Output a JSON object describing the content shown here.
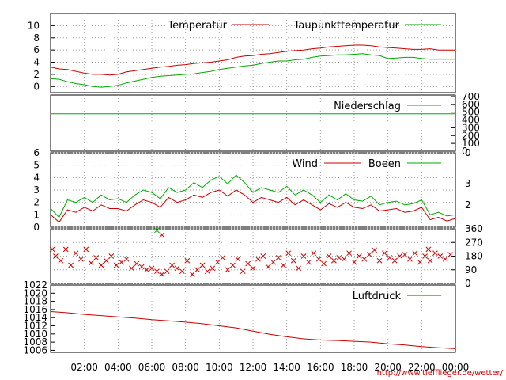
{
  "credit": "http://www.tiefflieger.de/wetter/",
  "colors": {
    "red": "#cc0000",
    "green": "#00aa00",
    "grid": "#a0a0a0"
  },
  "x_ticks": [
    "02:00",
    "04:00",
    "06:00",
    "08:00",
    "10:00",
    "12:00",
    "14:00",
    "16:00",
    "18:00",
    "20:00",
    "22:00",
    "00:00"
  ],
  "chart_data": [
    {
      "type": "line",
      "name": "temperature-panel",
      "x_unit": "hours",
      "xlim": [
        0,
        24
      ],
      "ylim": [
        -1,
        12
      ],
      "y_ticks": [
        0,
        2,
        4,
        6,
        8,
        10
      ],
      "series": [
        {
          "name": "Temperatur",
          "color": "#cc0000",
          "x": [
            0,
            0.5,
            1,
            1.5,
            2,
            2.5,
            3,
            3.5,
            4,
            4.5,
            5,
            5.5,
            6,
            6.5,
            7,
            7.5,
            8,
            8.5,
            9,
            9.5,
            10,
            10.5,
            11,
            11.5,
            12,
            12.5,
            13,
            13.5,
            14,
            14.5,
            15,
            15.5,
            16,
            16.5,
            17,
            17.5,
            18,
            18.5,
            19,
            19.5,
            20,
            20.5,
            21,
            21.5,
            22,
            22.5,
            23,
            23.5,
            24
          ],
          "values": [
            3.2,
            2.9,
            2.8,
            2.5,
            2.2,
            2.0,
            2.0,
            1.9,
            2.0,
            2.4,
            2.6,
            2.8,
            3.0,
            3.2,
            3.3,
            3.5,
            3.6,
            3.8,
            3.9,
            4.0,
            4.2,
            4.4,
            4.8,
            5.0,
            5.1,
            5.3,
            5.4,
            5.6,
            5.8,
            5.9,
            6.0,
            6.2,
            6.3,
            6.5,
            6.6,
            6.7,
            6.8,
            6.8,
            6.7,
            6.5,
            6.4,
            6.3,
            6.2,
            6.1,
            6.1,
            6.2,
            6.0,
            6.0,
            6.0
          ]
        },
        {
          "name": "Taupunkttemperatur",
          "color": "#00aa00",
          "x": [
            0,
            0.5,
            1,
            1.5,
            2,
            2.5,
            3,
            3.5,
            4,
            4.5,
            5,
            5.5,
            6,
            6.5,
            7,
            7.5,
            8,
            8.5,
            9,
            9.5,
            10,
            10.5,
            11,
            11.5,
            12,
            12.5,
            13,
            13.5,
            14,
            14.5,
            15,
            15.5,
            16,
            16.5,
            17,
            17.5,
            18,
            18.5,
            19,
            19.5,
            20,
            20.5,
            21,
            21.5,
            22,
            22.5,
            23,
            23.5,
            24
          ],
          "values": [
            1.3,
            1.2,
            0.8,
            0.5,
            0.3,
            0.0,
            -0.1,
            0.0,
            0.2,
            0.6,
            0.9,
            1.2,
            1.5,
            1.7,
            1.8,
            1.9,
            2.0,
            2.1,
            2.3,
            2.5,
            2.8,
            3.0,
            3.2,
            3.4,
            3.5,
            3.8,
            4.0,
            4.2,
            4.2,
            4.4,
            4.5,
            4.8,
            5.0,
            5.1,
            5.2,
            5.2,
            5.3,
            5.4,
            5.2,
            5.1,
            4.6,
            4.7,
            4.8,
            4.8,
            4.6,
            4.5,
            4.5,
            4.5,
            4.5
          ]
        }
      ]
    },
    {
      "type": "line",
      "name": "precipitation-panel",
      "xlim": [
        0,
        24
      ],
      "ylim": [
        0,
        720
      ],
      "y_ticks": [
        0,
        100,
        200,
        300,
        400,
        500,
        600,
        700
      ],
      "series": [
        {
          "name": "Niederschlag",
          "color": "#00aa00",
          "x": [
            0,
            24
          ],
          "values": [
            480,
            480
          ]
        }
      ]
    },
    {
      "type": "line",
      "name": "wind-panel",
      "xlim": [
        0,
        24
      ],
      "ylim": [
        0,
        6
      ],
      "y_ticks": [
        0,
        1,
        2,
        3,
        4,
        5,
        6
      ],
      "right_ticks": [
        "3",
        "2"
      ],
      "series": [
        {
          "name": "Wind",
          "color": "#cc0000",
          "x": [
            0,
            0.5,
            1,
            1.5,
            2,
            2.5,
            3,
            3.5,
            4,
            4.5,
            5,
            5.5,
            6,
            6.5,
            7,
            7.5,
            8,
            8.5,
            9,
            9.5,
            10,
            10.5,
            11,
            11.5,
            12,
            12.5,
            13,
            13.5,
            14,
            14.5,
            15,
            15.5,
            16,
            16.5,
            17,
            17.5,
            18,
            18.5,
            19,
            19.5,
            20,
            20.5,
            21,
            21.5,
            22,
            22.5,
            23,
            23.5,
            24
          ],
          "values": [
            1.0,
            0.4,
            1.4,
            1.2,
            1.6,
            1.3,
            1.8,
            1.5,
            1.5,
            1.3,
            1.8,
            2.2,
            2.0,
            1.6,
            2.4,
            2.0,
            2.2,
            2.6,
            2.4,
            2.8,
            3.0,
            2.5,
            3.0,
            2.6,
            2.0,
            2.4,
            2.2,
            2.0,
            2.4,
            1.8,
            2.2,
            1.8,
            1.4,
            1.9,
            1.6,
            2.0,
            1.6,
            1.5,
            1.8,
            1.3,
            1.4,
            1.5,
            1.2,
            1.3,
            1.6,
            0.6,
            0.8,
            0.5,
            0.7
          ]
        },
        {
          "name": "Boeen",
          "color": "#00aa00",
          "x": [
            0,
            0.5,
            1,
            1.5,
            2,
            2.5,
            3,
            3.5,
            4,
            4.5,
            5,
            5.5,
            6,
            6.5,
            7,
            7.5,
            8,
            8.5,
            9,
            9.5,
            10,
            10.5,
            11,
            11.5,
            12,
            12.5,
            13,
            13.5,
            14,
            14.5,
            15,
            15.5,
            16,
            16.5,
            17,
            17.5,
            18,
            18.5,
            19,
            19.5,
            20,
            20.5,
            21,
            21.5,
            22,
            22.5,
            23,
            23.5,
            24
          ],
          "values": [
            1.5,
            0.8,
            2.2,
            2.0,
            2.4,
            2.0,
            2.6,
            2.2,
            2.3,
            2.0,
            2.6,
            3.0,
            2.8,
            2.3,
            3.2,
            2.8,
            3.0,
            3.6,
            3.2,
            3.8,
            4.1,
            3.5,
            4.2,
            3.6,
            2.8,
            3.2,
            3.0,
            2.8,
            3.3,
            2.6,
            3.0,
            2.6,
            2.0,
            2.6,
            2.2,
            2.7,
            2.2,
            2.1,
            2.5,
            1.8,
            2.0,
            2.1,
            1.8,
            1.9,
            2.2,
            1.0,
            1.2,
            0.9,
            1.0
          ]
        }
      ]
    },
    {
      "type": "scatter",
      "name": "wind-direction-panel",
      "xlim": [
        0,
        24
      ],
      "ylim": [
        0,
        360
      ],
      "y_ticks_right": [
        0,
        90,
        180,
        270,
        360
      ],
      "series": [
        {
          "name": "direction",
          "color": "#cc0000",
          "x": [
            0.1,
            0.3,
            0.6,
            0.9,
            1.2,
            1.5,
            1.8,
            2.1,
            2.4,
            2.7,
            3.0,
            3.3,
            3.6,
            3.9,
            4.2,
            4.5,
            4.8,
            5.1,
            5.4,
            5.7,
            6.0,
            6.3,
            6.6,
            6.9,
            7.2,
            7.5,
            7.8,
            8.1,
            8.4,
            8.7,
            9.0,
            9.3,
            9.6,
            9.9,
            10.2,
            10.5,
            10.8,
            11.1,
            11.4,
            11.7,
            12.0,
            12.3,
            12.6,
            12.9,
            13.2,
            13.5,
            13.8,
            14.1,
            14.4,
            14.7,
            15.0,
            15.3,
            15.6,
            15.9,
            16.2,
            16.5,
            16.8,
            17.1,
            17.4,
            17.7,
            18.0,
            18.3,
            18.6,
            18.9,
            19.2,
            19.5,
            19.8,
            20.1,
            20.4,
            20.7,
            21.0,
            21.3,
            21.6,
            21.9,
            22.2,
            22.5,
            22.8,
            23.1,
            23.4,
            23.7
          ],
          "values": [
            225,
            180,
            150,
            225,
            120,
            200,
            160,
            225,
            135,
            170,
            120,
            150,
            180,
            120,
            140,
            160,
            100,
            130,
            110,
            90,
            100,
            80,
            60,
            80,
            120,
            100,
            80,
            150,
            60,
            90,
            120,
            80,
            100,
            140,
            170,
            90,
            120,
            160,
            80,
            130,
            100,
            160,
            180,
            110,
            140,
            170,
            120,
            200,
            150,
            100,
            180,
            140,
            200,
            160,
            130,
            180,
            150,
            170,
            160,
            200,
            140,
            180,
            160,
            190,
            220,
            150,
            200,
            170,
            150,
            180,
            190,
            160,
            200,
            140,
            180,
            150,
            200,
            180,
            160,
            190
          ]
        },
        {
          "name": "direction-outliers",
          "color": "#cc0000",
          "x": [
            6.6,
            22.4
          ],
          "values": [
            320,
            225
          ]
        },
        {
          "name": "direction-green",
          "color": "#00aa00",
          "x": [
            6.3
          ],
          "values": [
            350
          ]
        }
      ]
    },
    {
      "type": "line",
      "name": "pressure-panel",
      "xlim": [
        0,
        24
      ],
      "ylim": [
        1005.5,
        1022
      ],
      "y_ticks": [
        1006,
        1008,
        1010,
        1012,
        1014,
        1016,
        1018,
        1020,
        1022
      ],
      "series": [
        {
          "name": "Luftdruck",
          "color": "#cc0000",
          "x": [
            0,
            1,
            2,
            3,
            4,
            5,
            6,
            7,
            8,
            9,
            10,
            11,
            12,
            13,
            14,
            15,
            16,
            17,
            18,
            19,
            20,
            21,
            22,
            23,
            24
          ],
          "values": [
            1015.5,
            1015.2,
            1014.8,
            1014.5,
            1014.2,
            1013.9,
            1013.5,
            1013.2,
            1012.9,
            1012.5,
            1012.0,
            1011.5,
            1010.7,
            1009.9,
            1009.3,
            1008.8,
            1008.5,
            1008.4,
            1008.2,
            1008.0,
            1007.6,
            1007.3,
            1006.9,
            1006.6,
            1006.4
          ]
        }
      ]
    }
  ]
}
